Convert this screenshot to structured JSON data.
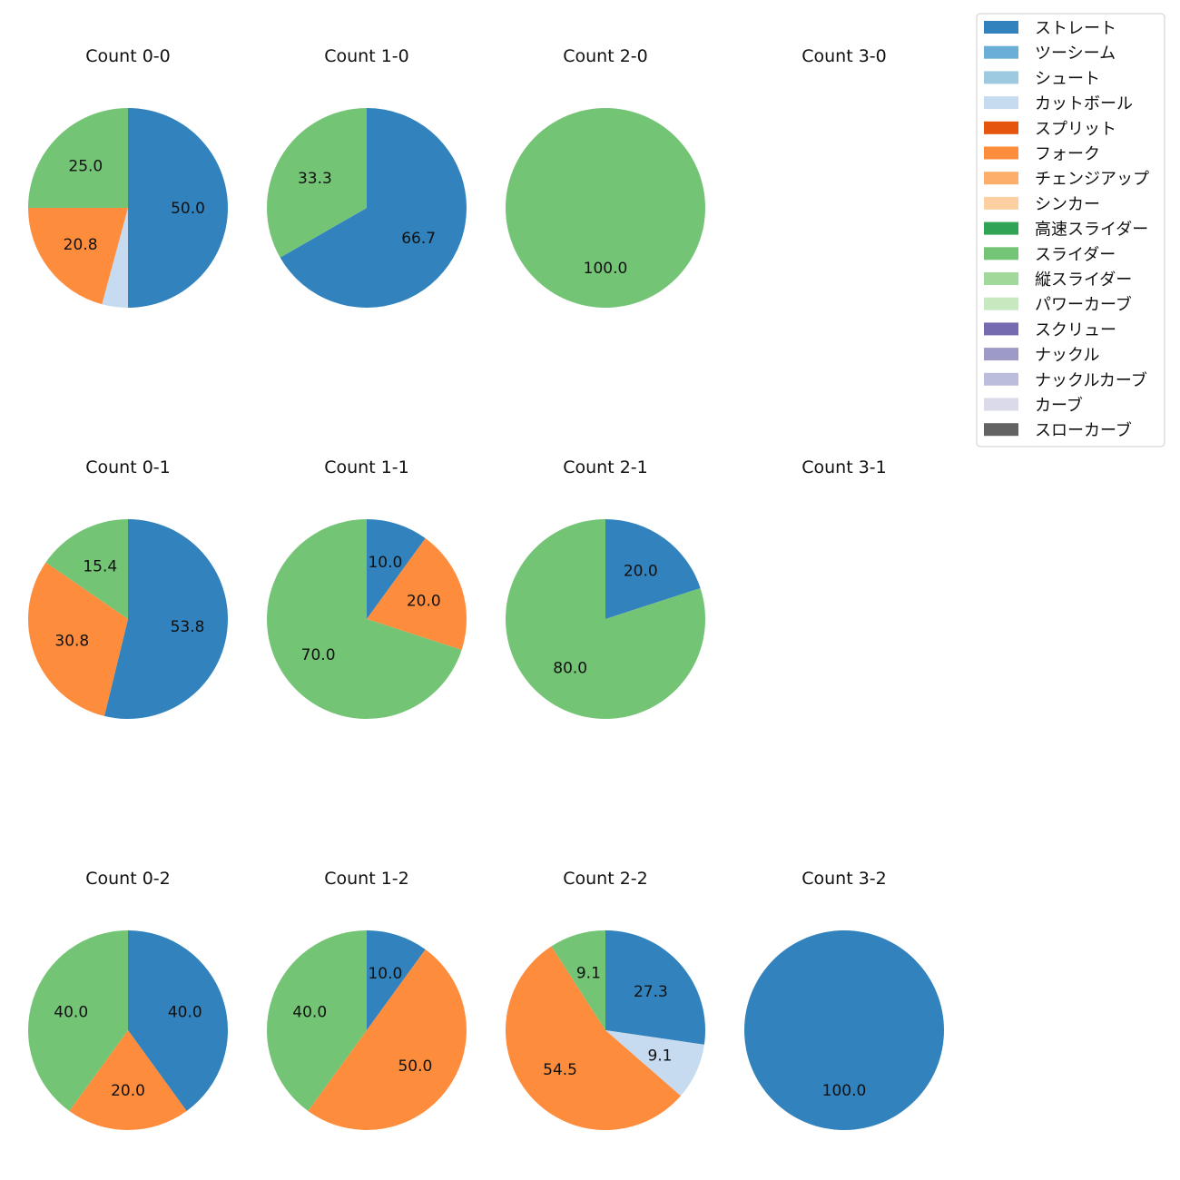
{
  "chart_data": {
    "type": "pie",
    "legend": {
      "placement": "top-right",
      "entries": [
        {
          "name": "ストレート",
          "color": "#3182bd"
        },
        {
          "name": "ツーシーム",
          "color": "#6baed6"
        },
        {
          "name": "シュート",
          "color": "#9ecae1"
        },
        {
          "name": "カットボール",
          "color": "#c6dbef"
        },
        {
          "name": "スプリット",
          "color": "#e6550d"
        },
        {
          "name": "フォーク",
          "color": "#fd8d3c"
        },
        {
          "name": "チェンジアップ",
          "color": "#fdae6b"
        },
        {
          "name": "シンカー",
          "color": "#fdd0a2"
        },
        {
          "name": "高速スライダー",
          "color": "#31a354"
        },
        {
          "name": "スライダー",
          "color": "#74c476"
        },
        {
          "name": "縦スライダー",
          "color": "#a1d99b"
        },
        {
          "name": "パワーカーブ",
          "color": "#c7e9c0"
        },
        {
          "name": "スクリュー",
          "color": "#756bb1"
        },
        {
          "name": "ナックル",
          "color": "#9e9ac8"
        },
        {
          "name": "ナックルカーブ",
          "color": "#bcbddc"
        },
        {
          "name": "カーブ",
          "color": "#dadaeb"
        },
        {
          "name": "スローカーブ",
          "color": "#636363"
        }
      ]
    },
    "charts": [
      {
        "title": "Count 0-0",
        "slices": [
          {
            "pitch": "ストレート",
            "value": 50.0,
            "label": "50.0"
          },
          {
            "pitch": "カットボール",
            "value": 4.2,
            "label": ""
          },
          {
            "pitch": "フォーク",
            "value": 20.8,
            "label": "20.8"
          },
          {
            "pitch": "スライダー",
            "value": 25.0,
            "label": "25.0"
          }
        ]
      },
      {
        "title": "Count 1-0",
        "slices": [
          {
            "pitch": "ストレート",
            "value": 66.7,
            "label": "66.7"
          },
          {
            "pitch": "スライダー",
            "value": 33.3,
            "label": "33.3"
          }
        ]
      },
      {
        "title": "Count 2-0",
        "slices": [
          {
            "pitch": "スライダー",
            "value": 100.0,
            "label": "100.0"
          }
        ]
      },
      {
        "title": "Count 3-0",
        "slices": []
      },
      {
        "title": "Count 0-1",
        "slices": [
          {
            "pitch": "ストレート",
            "value": 53.8,
            "label": "53.8"
          },
          {
            "pitch": "フォーク",
            "value": 30.8,
            "label": "30.8"
          },
          {
            "pitch": "スライダー",
            "value": 15.4,
            "label": "15.4"
          }
        ]
      },
      {
        "title": "Count 1-1",
        "slices": [
          {
            "pitch": "ストレート",
            "value": 10.0,
            "label": "10.0"
          },
          {
            "pitch": "フォーク",
            "value": 20.0,
            "label": "20.0"
          },
          {
            "pitch": "スライダー",
            "value": 70.0,
            "label": "70.0"
          }
        ]
      },
      {
        "title": "Count 2-1",
        "slices": [
          {
            "pitch": "ストレート",
            "value": 20.0,
            "label": "20.0"
          },
          {
            "pitch": "スライダー",
            "value": 80.0,
            "label": "80.0"
          }
        ]
      },
      {
        "title": "Count 3-1",
        "slices": []
      },
      {
        "title": "Count 0-2",
        "slices": [
          {
            "pitch": "ストレート",
            "value": 40.0,
            "label": "40.0"
          },
          {
            "pitch": "フォーク",
            "value": 20.0,
            "label": "20.0"
          },
          {
            "pitch": "スライダー",
            "value": 40.0,
            "label": "40.0"
          }
        ]
      },
      {
        "title": "Count 1-2",
        "slices": [
          {
            "pitch": "ストレート",
            "value": 10.0,
            "label": "10.0"
          },
          {
            "pitch": "フォーク",
            "value": 50.0,
            "label": "50.0"
          },
          {
            "pitch": "スライダー",
            "value": 40.0,
            "label": "40.0"
          }
        ]
      },
      {
        "title": "Count 2-2",
        "slices": [
          {
            "pitch": "ストレート",
            "value": 27.3,
            "label": "27.3"
          },
          {
            "pitch": "カットボール",
            "value": 9.1,
            "label": "9.1"
          },
          {
            "pitch": "フォーク",
            "value": 54.5,
            "label": "54.5"
          },
          {
            "pitch": "スライダー",
            "value": 9.1,
            "label": "9.1"
          }
        ]
      },
      {
        "title": "Count 3-2",
        "slices": [
          {
            "pitch": "ストレート",
            "value": 100.0,
            "label": "100.0"
          }
        ]
      }
    ]
  }
}
